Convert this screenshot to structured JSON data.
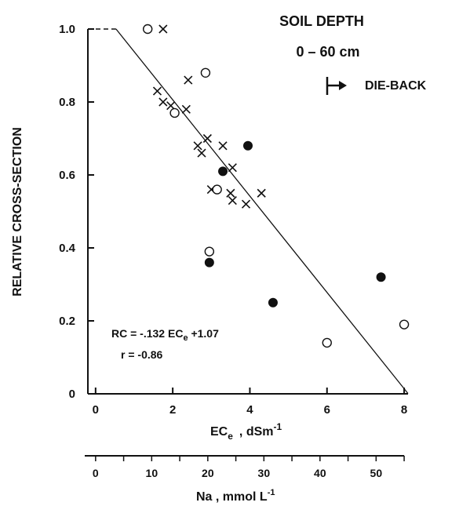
{
  "chart_data": {
    "type": "scatter",
    "title": "SOIL DEPTH",
    "subtitle": "0 – 60 cm",
    "ylabel": "RELATIVE CROSS-SECTION",
    "xlabel": "EC",
    "xlabel_sub": "e",
    "xlabel_unit": ", dSm",
    "xlabel_unit_sup": "-1",
    "xlim": [
      -0.2,
      8.1
    ],
    "ylim": [
      0,
      1.0
    ],
    "x_ticks": [
      0,
      2,
      4,
      6,
      8
    ],
    "y_ticks": [
      0,
      0.2,
      0.4,
      0.6,
      0.8,
      1.0
    ],
    "y_tick_labels": [
      "0",
      "0.2",
      "0.4",
      "0.6",
      "0.8",
      "1.0"
    ],
    "legend": {
      "marker": "arrow",
      "label": "DIE-BACK",
      "placement": "top-right"
    },
    "series": [
      {
        "marker": "x",
        "points": [
          [
            1.75,
            1.0
          ],
          [
            2.4,
            0.86
          ],
          [
            1.6,
            0.83
          ],
          [
            1.75,
            0.8
          ],
          [
            1.95,
            0.79
          ],
          [
            2.35,
            0.78
          ],
          [
            2.65,
            0.68
          ],
          [
            2.75,
            0.66
          ],
          [
            2.9,
            0.7
          ],
          [
            3.3,
            0.68
          ],
          [
            3.55,
            0.62
          ],
          [
            3.0,
            0.56
          ],
          [
            3.5,
            0.55
          ],
          [
            3.55,
            0.53
          ],
          [
            3.9,
            0.52
          ],
          [
            4.3,
            0.55
          ]
        ]
      },
      {
        "marker": "open-circle",
        "points": [
          [
            1.35,
            1.0
          ],
          [
            2.85,
            0.88
          ],
          [
            2.05,
            0.77
          ],
          [
            3.15,
            0.56
          ],
          [
            2.95,
            0.39
          ],
          [
            6.0,
            0.14
          ],
          [
            8.0,
            0.19
          ]
        ]
      },
      {
        "marker": "filled-circle",
        "points": [
          [
            3.3,
            0.61
          ],
          [
            3.95,
            0.68
          ],
          [
            2.95,
            0.36
          ],
          [
            4.6,
            0.25
          ],
          [
            7.4,
            0.32
          ]
        ]
      }
    ],
    "regression": {
      "slope": -0.132,
      "intercept": 1.07,
      "x_start": 0.53,
      "x_end": 8.1
    },
    "dashed_ref": {
      "y": 1.0,
      "x_from": -0.2,
      "x_to": 0.53
    },
    "equation": "RC = -.132 EC",
    "equation_sub": "e",
    "equation_tail": " +1.07",
    "r_label": "r = -0.86",
    "secondary_axis": {
      "label": "Na , mmol L",
      "label_sup": "-1",
      "ticks": [
        0,
        10,
        20,
        30,
        40,
        50
      ],
      "max_value": 55
    }
  }
}
